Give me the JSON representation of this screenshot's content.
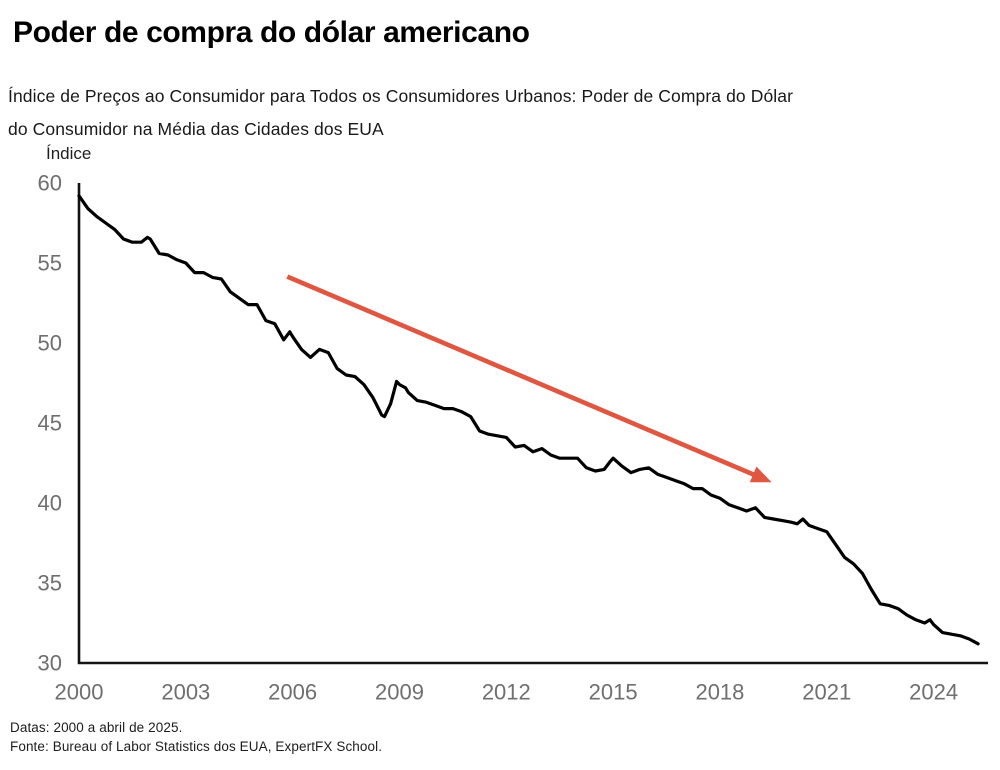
{
  "page": {
    "title": "Poder de compra do dólar americano",
    "subtitle_line1": "Índice de Preços ao Consumidor para Todos os Consumidores Urbanos: Poder de Compra do Dólar",
    "subtitle_line2": "do Consumidor na Média das Cidades dos EUA",
    "footer_line1": "Datas: 2000 a abril de 2025.",
    "footer_line2": "Fonte: Bureau of Labor Statistics dos EUA, ExpertFX School."
  },
  "chart_data": {
    "type": "line",
    "title": "Poder de compra do dólar americano",
    "xlabel": "",
    "ylabel": "Índice",
    "xlim": [
      2000,
      2025.5
    ],
    "ylim": [
      30,
      60
    ],
    "x_ticks": [
      2000,
      2003,
      2006,
      2009,
      2012,
      2015,
      2018,
      2021,
      2024
    ],
    "y_ticks": [
      60,
      55,
      50,
      45,
      40,
      35,
      30
    ],
    "grid": false,
    "legend": "none",
    "colors": {
      "line": "#000000",
      "axis": "#141414",
      "tick_label": "#6f6f6f",
      "arrow": "#e05640"
    },
    "annotation_arrow": {
      "from": {
        "x": 2005.85,
        "y": 54.15
      },
      "to": {
        "x": 2019.45,
        "y": 41.3
      }
    },
    "series": [
      {
        "name": "Poder de compra do dólar do consumidor (índice)",
        "points": [
          [
            2000.0,
            59.2
          ],
          [
            2000.25,
            58.4
          ],
          [
            2000.5,
            57.9
          ],
          [
            2000.75,
            57.5
          ],
          [
            2001.0,
            57.1
          ],
          [
            2001.25,
            56.5
          ],
          [
            2001.5,
            56.3
          ],
          [
            2001.75,
            56.3
          ],
          [
            2001.92,
            56.6
          ],
          [
            2002.0,
            56.5
          ],
          [
            2002.25,
            55.6
          ],
          [
            2002.5,
            55.5
          ],
          [
            2002.75,
            55.2
          ],
          [
            2003.0,
            55.0
          ],
          [
            2003.25,
            54.4
          ],
          [
            2003.5,
            54.4
          ],
          [
            2003.75,
            54.1
          ],
          [
            2004.0,
            54.0
          ],
          [
            2004.25,
            53.2
          ],
          [
            2004.5,
            52.8
          ],
          [
            2004.75,
            52.4
          ],
          [
            2005.0,
            52.4
          ],
          [
            2005.25,
            51.4
          ],
          [
            2005.5,
            51.2
          ],
          [
            2005.75,
            50.2
          ],
          [
            2005.92,
            50.7
          ],
          [
            2006.0,
            50.4
          ],
          [
            2006.25,
            49.6
          ],
          [
            2006.5,
            49.1
          ],
          [
            2006.75,
            49.6
          ],
          [
            2007.0,
            49.4
          ],
          [
            2007.25,
            48.4
          ],
          [
            2007.5,
            48.0
          ],
          [
            2007.75,
            47.9
          ],
          [
            2008.0,
            47.4
          ],
          [
            2008.25,
            46.6
          ],
          [
            2008.5,
            45.5
          ],
          [
            2008.58,
            45.4
          ],
          [
            2008.75,
            46.2
          ],
          [
            2008.92,
            47.6
          ],
          [
            2009.0,
            47.4
          ],
          [
            2009.17,
            47.2
          ],
          [
            2009.25,
            46.9
          ],
          [
            2009.5,
            46.4
          ],
          [
            2009.75,
            46.3
          ],
          [
            2010.0,
            46.1
          ],
          [
            2010.25,
            45.9
          ],
          [
            2010.5,
            45.9
          ],
          [
            2010.75,
            45.7
          ],
          [
            2011.0,
            45.4
          ],
          [
            2011.25,
            44.5
          ],
          [
            2011.5,
            44.3
          ],
          [
            2011.75,
            44.2
          ],
          [
            2012.0,
            44.1
          ],
          [
            2012.25,
            43.5
          ],
          [
            2012.5,
            43.6
          ],
          [
            2012.75,
            43.2
          ],
          [
            2013.0,
            43.4
          ],
          [
            2013.25,
            43.0
          ],
          [
            2013.5,
            42.8
          ],
          [
            2013.75,
            42.8
          ],
          [
            2014.0,
            42.8
          ],
          [
            2014.25,
            42.2
          ],
          [
            2014.5,
            42.0
          ],
          [
            2014.75,
            42.1
          ],
          [
            2014.92,
            42.6
          ],
          [
            2015.0,
            42.8
          ],
          [
            2015.25,
            42.3
          ],
          [
            2015.5,
            41.9
          ],
          [
            2015.75,
            42.1
          ],
          [
            2016.0,
            42.2
          ],
          [
            2016.25,
            41.8
          ],
          [
            2016.5,
            41.6
          ],
          [
            2016.75,
            41.4
          ],
          [
            2017.0,
            41.2
          ],
          [
            2017.25,
            40.9
          ],
          [
            2017.5,
            40.9
          ],
          [
            2017.75,
            40.5
          ],
          [
            2018.0,
            40.3
          ],
          [
            2018.25,
            39.9
          ],
          [
            2018.5,
            39.7
          ],
          [
            2018.75,
            39.5
          ],
          [
            2019.0,
            39.7
          ],
          [
            2019.25,
            39.1
          ],
          [
            2019.5,
            39.0
          ],
          [
            2019.75,
            38.9
          ],
          [
            2020.0,
            38.8
          ],
          [
            2020.17,
            38.7
          ],
          [
            2020.33,
            39.0
          ],
          [
            2020.5,
            38.6
          ],
          [
            2020.75,
            38.4
          ],
          [
            2021.0,
            38.2
          ],
          [
            2021.25,
            37.4
          ],
          [
            2021.5,
            36.6
          ],
          [
            2021.75,
            36.2
          ],
          [
            2022.0,
            35.6
          ],
          [
            2022.25,
            34.6
          ],
          [
            2022.5,
            33.7
          ],
          [
            2022.75,
            33.6
          ],
          [
            2023.0,
            33.4
          ],
          [
            2023.25,
            33.0
          ],
          [
            2023.5,
            32.7
          ],
          [
            2023.75,
            32.5
          ],
          [
            2023.9,
            32.7
          ],
          [
            2024.0,
            32.4
          ],
          [
            2024.25,
            31.9
          ],
          [
            2024.5,
            31.8
          ],
          [
            2024.75,
            31.7
          ],
          [
            2025.0,
            31.5
          ],
          [
            2025.25,
            31.2
          ]
        ]
      }
    ]
  }
}
